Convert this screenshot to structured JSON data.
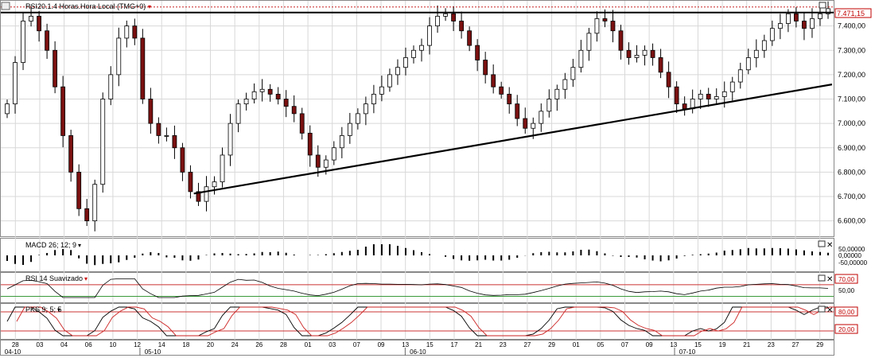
{
  "window": {
    "title": "RSI20.1.4 Horas.Hora Local (TMG+0)",
    "last_price": "7.471,15"
  },
  "colors": {
    "up_candle": "#ffffff",
    "down_candle": "#7a1010",
    "candle_outline": "#000000",
    "grid": "#d8d8d8",
    "price_tag_bg": "#ffffff",
    "price_tag_border": "#c00000",
    "price_tag_text": "#c00000",
    "oscillator_line": "#000000",
    "signal_line": "#cc2222",
    "level_line_upper": "#cc3333",
    "level_line_lower": "#3a9a3a"
  },
  "panels": {
    "macd": {
      "title": "MACD 26; 12; 9",
      "axis_labels": [
        "50,00000",
        "0,00000",
        "-50,00000"
      ]
    },
    "rsi": {
      "title": "RSI 14 Suavizado",
      "axis_labels": [
        "70,00",
        "50,00"
      ]
    },
    "pks": {
      "title": "PKS 9; 5; 5",
      "axis_labels": [
        "80,00",
        "20,00"
      ]
    }
  },
  "x_axis": {
    "day_labels": [
      "28",
      "03",
      "04",
      "06",
      "10",
      "12",
      "14",
      "18",
      "20",
      "24",
      "26",
      "28",
      "01",
      "03",
      "07",
      "09",
      "13",
      "15",
      "17",
      "21",
      "23",
      "27",
      "29",
      "01",
      "05",
      "07",
      "09",
      "13",
      "15",
      "19",
      "21",
      "23",
      "27",
      "29"
    ],
    "month_labels": [
      "04-10",
      "05-10",
      "06-10",
      "07-10"
    ]
  },
  "chart_data": {
    "type": "candlestick",
    "title": "RSI20.1.4 Horas.Hora Local (TMG+0)",
    "ylim": [
      6540,
      7500
    ],
    "y_ticks": [
      6600,
      6700,
      6800,
      6900,
      7000,
      7100,
      7200,
      7300,
      7400
    ],
    "y_tick_labels": [
      "6.600,00",
      "6.700,00",
      "6.800,00",
      "6.900,00",
      "7.000,00",
      "7.100,00",
      "7.200,00",
      "7.300,00",
      "7.400,00"
    ],
    "last_value": 7471.15,
    "resistance_level": 7455,
    "trendline": [
      {
        "idx": 0.23,
        "value": 6712
      },
      {
        "idx": 1.0,
        "value": 7160
      }
    ],
    "closes": [
      7080,
      7250,
      7420,
      7440,
      7380,
      7300,
      7150,
      6950,
      6800,
      6650,
      6600,
      6750,
      7100,
      7200,
      7350,
      7400,
      7350,
      7100,
      7000,
      6950,
      6950,
      6900,
      6800,
      6720,
      6680,
      6740,
      6760,
      6870,
      7000,
      7080,
      7100,
      7130,
      7140,
      7120,
      7100,
      7070,
      7040,
      6960,
      6870,
      6820,
      6850,
      6900,
      6950,
      7000,
      7040,
      7080,
      7120,
      7150,
      7200,
      7230,
      7270,
      7300,
      7320,
      7400,
      7440,
      7450,
      7420,
      7380,
      7320,
      7260,
      7200,
      7150,
      7120,
      7080,
      7020,
      6980,
      7000,
      7050,
      7100,
      7140,
      7180,
      7230,
      7300,
      7370,
      7430,
      7420,
      7380,
      7300,
      7270,
      7280,
      7300,
      7270,
      7210,
      7150,
      7080,
      7060,
      7100,
      7120,
      7100,
      7110,
      7130,
      7170,
      7220,
      7270,
      7300,
      7340,
      7390,
      7410,
      7450,
      7420,
      7390,
      7430,
      7450,
      7471
    ],
    "macd_hist_scale": [
      -50,
      50
    ],
    "rsi_levels": [
      70,
      50
    ],
    "pks_levels": [
      80,
      20
    ]
  }
}
